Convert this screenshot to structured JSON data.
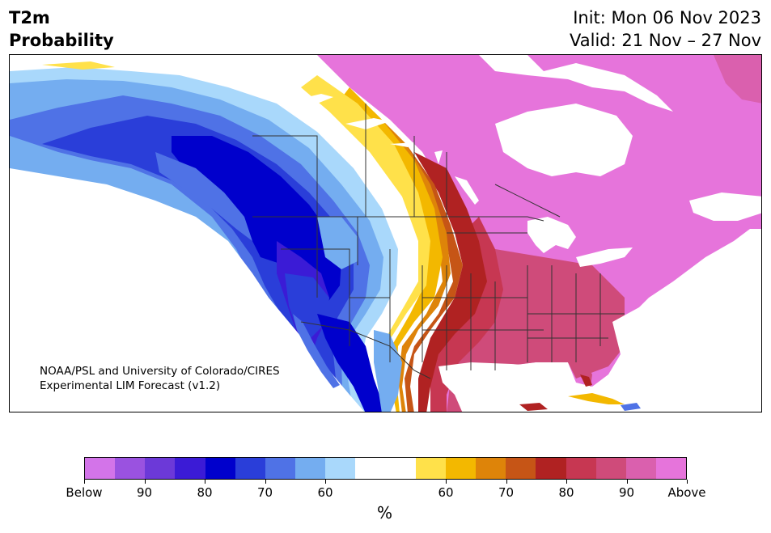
{
  "title": {
    "line1": "T2m",
    "line2": "Probability"
  },
  "dates": {
    "init": "Init: Mon 06 Nov 2023",
    "valid": "Valid: 21 Nov – 27 Nov"
  },
  "credit": {
    "line1": "NOAA/PSL and University of Colorado/CIRES",
    "line2": "Experimental LIM Forecast (v1.2)"
  },
  "colorbar": {
    "unit": "%",
    "colors": [
      "#d374e9",
      "#9a52e0",
      "#6c39d8",
      "#3b1bd6",
      "#0000cc",
      "#2a3ed9",
      "#4f72e6",
      "#74adf0",
      "#a9d8fb",
      "#ffffff",
      "#ffffff",
      "#ffe14a",
      "#f3b800",
      "#de8409",
      "#c65516",
      "#b02222",
      "#c73752",
      "#cf4b7a",
      "#da60ae",
      "#e674db"
    ],
    "labels": [
      "Below",
      "90",
      "80",
      "70",
      "60",
      "60",
      "70",
      "80",
      "90",
      "Above"
    ]
  },
  "map": {
    "colors": {
      "land_white": "#ffffff",
      "below_light": "#a9d8fb",
      "below_60": "#74adf0",
      "below_70": "#4f72e6",
      "below_75": "#2a3ed9",
      "below_80": "#0000cc",
      "below_85": "#3b1bd6",
      "above_55": "#ffe14a",
      "above_60": "#f3b800",
      "above_65": "#de8409",
      "above_70": "#c65516",
      "above_75": "#b02222",
      "above_80": "#c73752",
      "above_85": "#cf4b7a",
      "above_90": "#da60ae",
      "above_max": "#e674db",
      "border": "#333333"
    }
  }
}
